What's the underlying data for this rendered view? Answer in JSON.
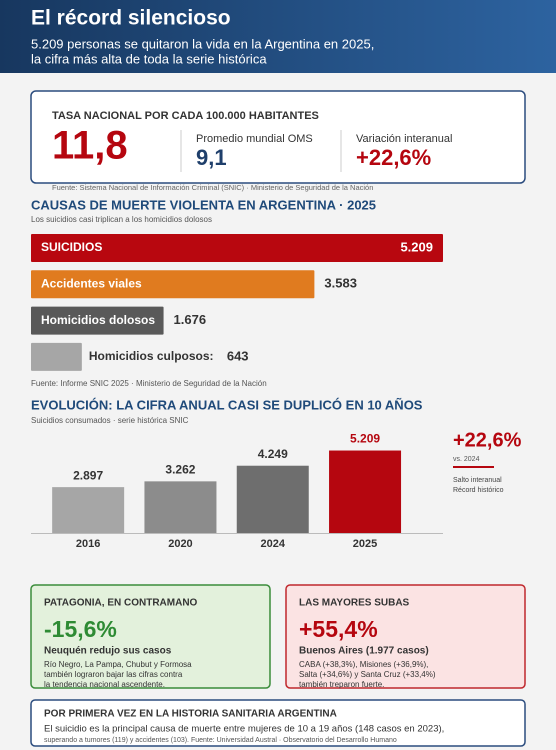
{
  "header": {
    "title": "El récord silencioso",
    "subtitle": [
      "5.209 personas se quitaron la vida en la Argentina en 2025,",
      "la cifra más alta de toda la serie histórica"
    ]
  },
  "kpi": {
    "label": "TASA NACIONAL POR CADA 100.000 HABITANTES",
    "main": "11,8",
    "items": [
      {
        "label": "Promedio mundial OMS",
        "value": "9,1"
      },
      {
        "label": "Variación interanual",
        "value": "+22,6%"
      }
    ],
    "source": "Fuente: Sistema Nacional de Información Criminal (SNIC) · Ministerio de Seguridad de la Nación"
  },
  "chart_data": [
    {
      "type": "bar",
      "orientation": "horizontal",
      "title": "CAUSAS DE MUERTE VIOLENTA EN ARGENTINA · 2025",
      "subtitle": "Los suicidios casi triplican a los homicidios dolosos",
      "categories": [
        "SUICIDIOS",
        "Accidentes viales",
        "Homicidios dolosos",
        "Homicidios culposos:"
      ],
      "values": [
        5209,
        3583,
        1676,
        643
      ],
      "value_labels": [
        "5.209",
        "3.583",
        "1.676",
        "643"
      ],
      "colors": [
        "#b8070f",
        "#e07b1f",
        "#595959",
        "#a6a6a6"
      ],
      "xlim": [
        0,
        5209
      ],
      "source": "Fuente: Informe SNIC 2025 · Ministerio de Seguridad de la Nación"
    },
    {
      "type": "bar",
      "orientation": "vertical",
      "title": "EVOLUCIÓN: LA CIFRA ANUAL CASI SE DUPLICÓ EN 10 AÑOS",
      "subtitle": "Suicidios consumados · serie histórica SNIC",
      "categories": [
        "2016",
        "2020",
        "2024",
        "2025"
      ],
      "values": [
        2897,
        3262,
        4249,
        5209
      ],
      "value_labels": [
        "2.897",
        "3.262",
        "4.249",
        "5.209"
      ],
      "colors": [
        "#a6a6a6",
        "#8c8c8c",
        "#6e6e6e",
        "#b5060f"
      ],
      "ylim": [
        0,
        6000
      ],
      "annotation": {
        "value": "+22,6%",
        "note": "vs. 2024",
        "lines": [
          "Salto interanual",
          "Récord histórico"
        ]
      }
    }
  ],
  "cards": [
    {
      "title": "PATAGONIA, EN CONTRAMANO",
      "value": "-15,6%",
      "headline": "Neuquén redujo sus casos",
      "lines": [
        "Río Negro, La Pampa, Chubut y Formosa",
        "también lograron bajar las cifras contra",
        "la tendencia nacional ascendente."
      ]
    },
    {
      "title": "LAS MAYORES SUBAS",
      "value": "+55,4%",
      "headline": "Buenos Aires (1.977 casos)",
      "lines": [
        "CABA (+38,3%), Misiones (+36,9%),",
        "Salta (+34,6%) y Santa Cruz (+33,4%)",
        "también treparon fuerte."
      ]
    }
  ],
  "footer_box": {
    "title": "POR PRIMERA VEZ EN LA HISTORIA SANITARIA ARGENTINA",
    "text": "El suicidio es la principal causa de muerte entre mujeres de 10 a 19 años (148 casos en 2023),",
    "note": "superando a tumores (119) y accidentes (103). Fuente: Universidad Austral · Observatorio del Desarrollo Humano"
  }
}
